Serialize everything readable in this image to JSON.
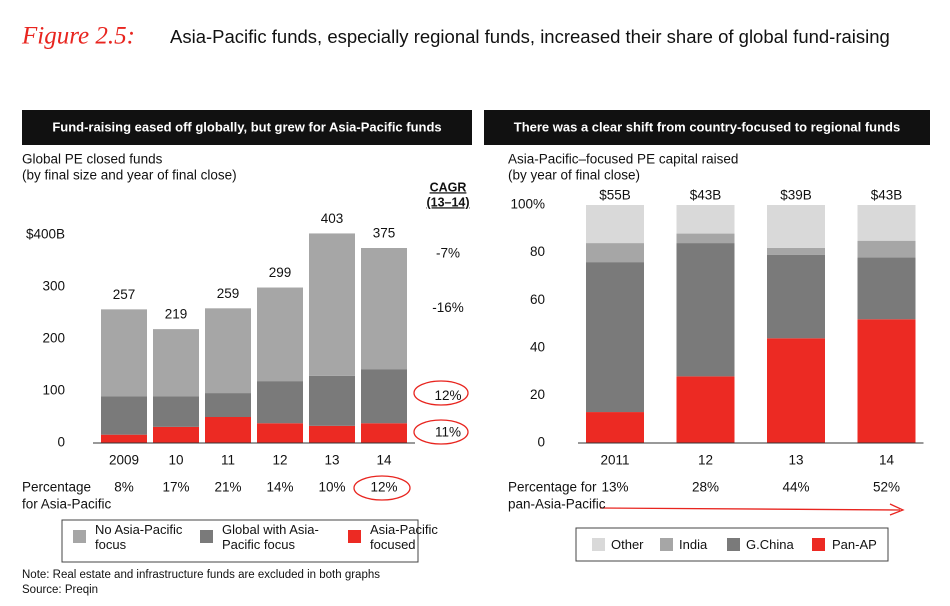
{
  "title": {
    "figure": "Figure 2.5:",
    "text": "Asia-Pacific funds, especially regional funds, increased their share of global fund-raising"
  },
  "chart_data": [
    {
      "type": "bar",
      "stacked": true,
      "title": "Fund-raising eased off globally, but grew for Asia-Pacific funds",
      "subtitle": [
        "Global PE closed funds",
        "(by final size and year of final close)"
      ],
      "categories": [
        "2009",
        "10",
        "11",
        "12",
        "13",
        "14"
      ],
      "series": [
        {
          "name": "No Asia-Pacific focus",
          "color": "#a6a6a6",
          "values": [
            167,
            129,
            163,
            180,
            274,
            233
          ]
        },
        {
          "name": "Global with Asia-Pacific focus",
          "color": "#7a7a7a",
          "values": [
            74,
            59,
            46,
            81,
            96,
            104
          ]
        },
        {
          "name": "Asia-Pacific focused",
          "color": "#ec2a23",
          "values": [
            16,
            31,
            50,
            38,
            33,
            38
          ]
        }
      ],
      "totals": [
        257,
        219,
        259,
        299,
        403,
        375
      ],
      "ylim": [
        0,
        420
      ],
      "yticks": [
        0,
        100,
        200,
        300,
        {
          "value": 400,
          "label": "$400B"
        }
      ],
      "cagr": {
        "title": [
          "CAGR",
          "(13–14)"
        ],
        "values": [
          -7,
          -16,
          12,
          11
        ],
        "value_labels": [
          "-7%",
          "-16%",
          "12%",
          "11%"
        ]
      },
      "percentage_row": {
        "label": [
          "Percentage",
          "for Asia-Pacific"
        ],
        "values": [
          8,
          17,
          21,
          14,
          10,
          12
        ],
        "value_labels": [
          "8%",
          "17%",
          "21%",
          "14%",
          "10%",
          "12%"
        ]
      }
    },
    {
      "type": "bar",
      "stacked": true,
      "title": "There was a clear shift from country-focused to regional funds",
      "subtitle": [
        "Asia-Pacific–focused PE capital raised",
        "(by year of final close)"
      ],
      "categories": [
        "2011",
        "12",
        "13",
        "14"
      ],
      "series": [
        {
          "name": "Other",
          "color": "#d9d9d9",
          "values": [
            16,
            12,
            18,
            15
          ]
        },
        {
          "name": "India",
          "color": "#a6a6a6",
          "values": [
            8,
            4,
            3,
            7
          ]
        },
        {
          "name": "G.China",
          "color": "#7a7a7a",
          "values": [
            63,
            56,
            35,
            26
          ]
        },
        {
          "name": "Pan-AP",
          "color": "#ec2a23",
          "values": [
            13,
            28,
            44,
            52
          ]
        }
      ],
      "totals": {
        "values": [
          55,
          43,
          39,
          43
        ],
        "value_labels": [
          "$55B",
          "$43B",
          "$39B",
          "$43B"
        ]
      },
      "ylim": [
        0,
        100
      ],
      "yticks": [
        0,
        20,
        40,
        60,
        80,
        {
          "value": 100,
          "label": "100%"
        }
      ],
      "percentage_row": {
        "label": [
          "Percentage for",
          "pan-Asia-Pacific"
        ],
        "values": [
          13,
          28,
          44,
          52
        ],
        "value_labels": [
          "13%",
          "28%",
          "44%",
          "52%"
        ]
      }
    }
  ],
  "note": "Note: Real estate and infrastructure funds are excluded in both graphs",
  "source": "Source: Preqin"
}
